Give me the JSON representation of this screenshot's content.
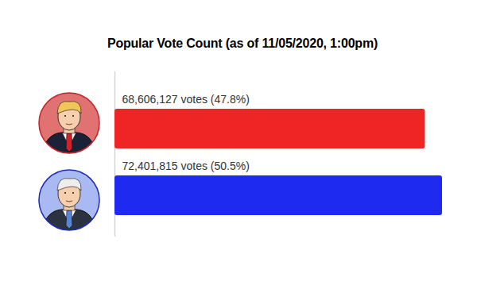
{
  "chart_data": {
    "type": "bar",
    "title": "Popular Vote Count (as of 11/05/2020, 1:00pm)",
    "orientation": "horizontal",
    "categories": [
      null,
      null
    ],
    "values": [
      68606127,
      72401815
    ],
    "value_labels": [
      "68,606,127 votes (47.8%)",
      "72,401,815 votes (50.5%)"
    ],
    "colors": [
      "#ee2524",
      "#1f2af0"
    ],
    "xlim": [
      0,
      72401815
    ],
    "xticks": [],
    "data_labels": true,
    "tick_labels": false,
    "grid": false
  }
}
